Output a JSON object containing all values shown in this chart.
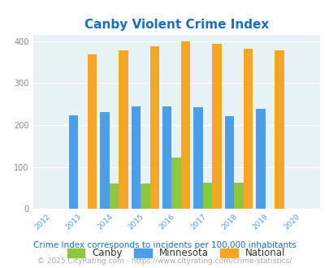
{
  "title": "Canby Violent Crime Index",
  "years": [
    2013,
    2014,
    2015,
    2016,
    2017,
    2018,
    2019
  ],
  "canby": [
    0,
    60,
    60,
    122,
    63,
    63,
    0
  ],
  "minnesota": [
    224,
    231,
    244,
    245,
    242,
    222,
    238
  ],
  "national": [
    369,
    378,
    387,
    400,
    394,
    382,
    379
  ],
  "canby_color": "#8dc63f",
  "minnesota_color": "#4d9ee8",
  "national_color": "#f5a623",
  "bg_color": "#e6f2f5",
  "title_color": "#1a6fbd",
  "tick_color": "#4d9ee8",
  "ytick_color": "#888888",
  "xlim": [
    2011.4,
    2020.6
  ],
  "ylim": [
    0,
    415
  ],
  "yticks": [
    0,
    100,
    200,
    300,
    400
  ],
  "bar_width": 0.3,
  "footnote1": "Crime Index corresponds to incidents per 100,000 inhabitants",
  "footnote2": "© 2025 CityRating.com - https://www.cityrating.com/crime-statistics/",
  "footnote1_color": "#1a6fbd",
  "footnote2_color": "#aaaaaa"
}
